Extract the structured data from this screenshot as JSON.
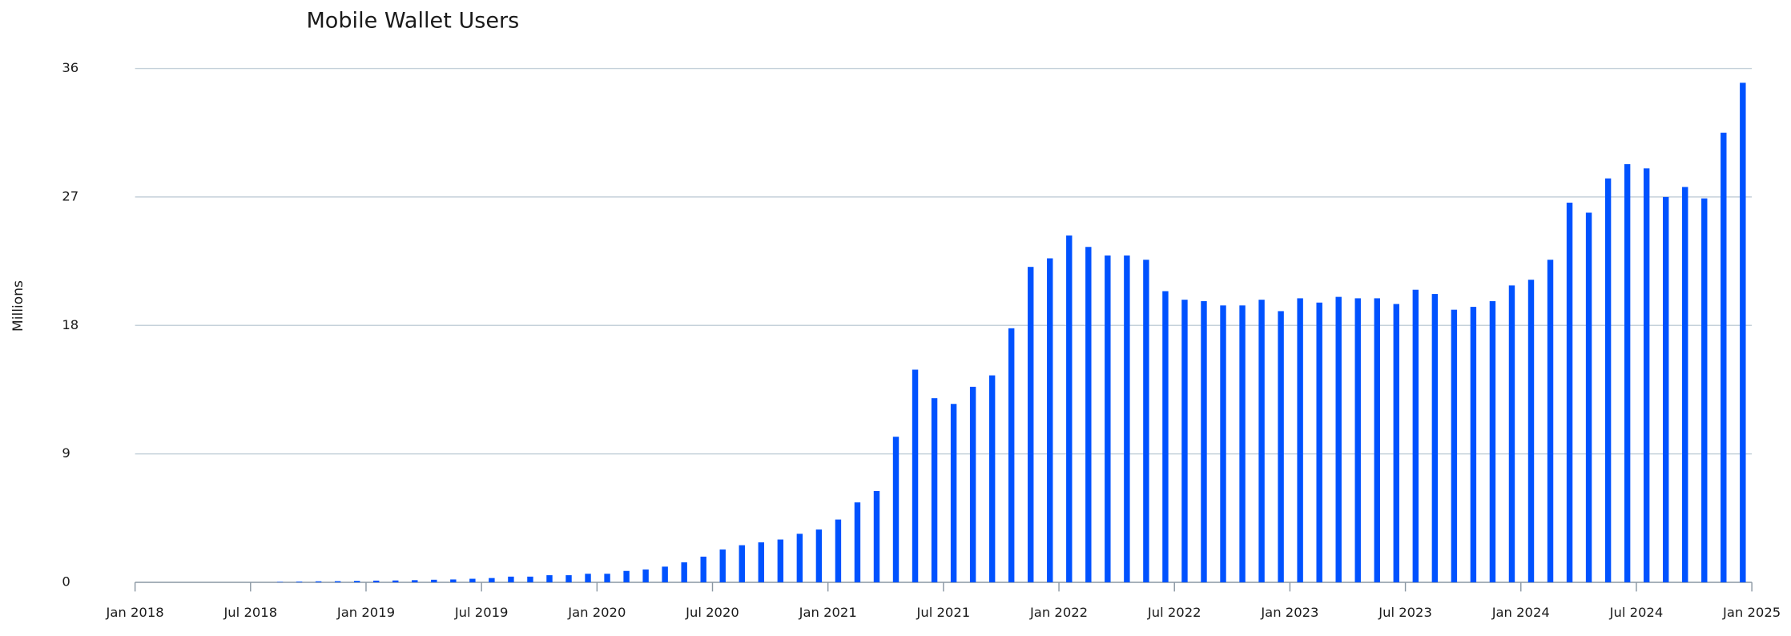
{
  "chart_data": {
    "type": "bar",
    "title": "Mobile Wallet Users",
    "y_label": "Millions",
    "color": "#0052ff",
    "grid": true,
    "x": [
      "Sep 2018",
      "Oct 2018",
      "Nov 2018",
      "Dec 2018",
      "Jan 2019",
      "Feb 2019",
      "Mar 2019",
      "Apr 2019",
      "May 2019",
      "Jun 2019",
      "Jul 2019",
      "Aug 2019",
      "Sep 2019",
      "Oct 2019",
      "Nov 2019",
      "Dec 2019",
      "Jan 2020",
      "Feb 2020",
      "Mar 2020",
      "Apr 2020",
      "May 2020",
      "Jun 2020",
      "Jul 2020",
      "Aug 2020",
      "Sep 2020",
      "Oct 2020",
      "Nov 2020",
      "Dec 2020",
      "Jan 2021",
      "Feb 2021",
      "Mar 2021",
      "Apr 2021",
      "May 2021",
      "Jun 2021",
      "Jul 2021",
      "Aug 2021",
      "Sep 2021",
      "Oct 2021",
      "Nov 2021",
      "Dec 2021",
      "Jan 2022",
      "Feb 2022",
      "Mar 2022",
      "Apr 2022",
      "May 2022",
      "Jun 2022",
      "Jul 2022",
      "Aug 2022",
      "Sep 2022",
      "Oct 2022",
      "Nov 2022",
      "Dec 2022",
      "Jan 2023",
      "Feb 2023",
      "Mar 2023",
      "Apr 2023",
      "May 2023",
      "Jun 2023",
      "Jul 2023",
      "Aug 2023",
      "Sep 2023",
      "Oct 2023",
      "Nov 2023",
      "Dec 2023",
      "Jan 2024",
      "Feb 2024",
      "Mar 2024",
      "Apr 2024",
      "May 2024",
      "Jun 2024",
      "Jul 2024",
      "Aug 2024",
      "Sep 2024",
      "Oct 2024",
      "Nov 2024",
      "Dec 2024",
      "Jan 2025"
    ],
    "values": [
      0.03,
      0.05,
      0.07,
      0.08,
      0.1,
      0.12,
      0.13,
      0.15,
      0.18,
      0.2,
      0.25,
      0.3,
      0.4,
      0.4,
      0.5,
      0.5,
      0.6,
      0.6,
      0.8,
      0.9,
      1.1,
      1.4,
      1.8,
      2.3,
      2.6,
      2.8,
      3.0,
      3.4,
      3.7,
      4.4,
      5.6,
      6.4,
      10.2,
      14.9,
      12.9,
      12.5,
      13.7,
      14.5,
      17.8,
      22.1,
      22.7,
      24.3,
      23.5,
      22.9,
      22.9,
      22.6,
      20.4,
      19.8,
      19.7,
      19.4,
      19.4,
      19.8,
      19.0,
      19.9,
      19.6,
      20.0,
      19.9,
      19.9,
      19.5,
      20.5,
      20.2,
      19.1,
      19.3,
      19.7,
      20.8,
      21.2,
      22.6,
      26.6,
      25.9,
      28.3,
      29.3,
      29.0,
      27.0,
      27.7,
      26.9,
      31.5,
      35.0
    ],
    "xticks": [
      "Jan 2018",
      "Jul 2018",
      "Jan 2019",
      "Jul 2019",
      "Jan 2020",
      "Jul 2020",
      "Jan 2021",
      "Jul 2021",
      "Jan 2022",
      "Jul 2022",
      "Jan 2023",
      "Jul 2023",
      "Jan 2024",
      "Jul 2024",
      "Jan 2025"
    ],
    "ylim": [
      0,
      36
    ],
    "yticks": [
      0,
      9,
      18,
      27,
      36
    ]
  }
}
